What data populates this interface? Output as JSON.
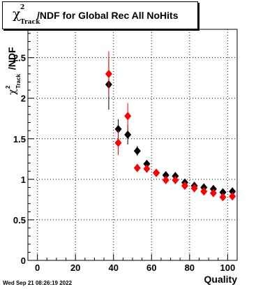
{
  "title": {
    "symbol": "χ",
    "superscript": "2",
    "subscript": "Track",
    "text": "/NDF for Global Rec All NoHits"
  },
  "timestamp": "Wed Sep 21 08:26:19 2022",
  "colors": {
    "series_black": "#000000",
    "series_red": "#ff0000",
    "grid": "#000000"
  },
  "chart_data": {
    "type": "scatter",
    "title": "χ²_Track /NDF for Global Rec All NoHits",
    "xlabel": "Quality",
    "ylabel": "χ²_Track /NDF",
    "xlim": [
      -5,
      105
    ],
    "ylim": [
      0,
      2.85
    ],
    "xticks": [
      0,
      20,
      40,
      60,
      80,
      100
    ],
    "yticks": [
      0,
      0.5,
      1,
      1.5,
      2,
      2.5
    ],
    "xtick_labels": [
      "0",
      "20",
      "40",
      "60",
      "80",
      "100"
    ],
    "ytick_labels": [
      "0",
      "0.5",
      "1",
      "1.5",
      "2",
      "2.5"
    ],
    "grid": true,
    "legend": "none",
    "series": [
      {
        "color": "#000000",
        "marker": "diamond",
        "points": [
          {
            "x": 37.5,
            "y": 2.17,
            "err": 0.31
          },
          {
            "x": 42.5,
            "y": 1.62,
            "err": 0.12
          },
          {
            "x": 47.5,
            "y": 1.55,
            "err": 0.12
          },
          {
            "x": 52.5,
            "y": 1.35,
            "err": 0.06
          },
          {
            "x": 57.5,
            "y": 1.19,
            "err": 0.03
          },
          {
            "x": 62.5,
            "y": 1.08,
            "err": 0.02
          },
          {
            "x": 67.5,
            "y": 1.05,
            "err": 0.02
          },
          {
            "x": 72.5,
            "y": 1.04,
            "err": 0.02
          },
          {
            "x": 77.5,
            "y": 0.96,
            "err": 0.015
          },
          {
            "x": 82.5,
            "y": 0.92,
            "err": 0.015
          },
          {
            "x": 87.5,
            "y": 0.9,
            "err": 0.015
          },
          {
            "x": 92.5,
            "y": 0.88,
            "err": 0.015
          },
          {
            "x": 97.5,
            "y": 0.84,
            "err": 0.015
          },
          {
            "x": 102.5,
            "y": 0.85,
            "err": 0.015
          }
        ]
      },
      {
        "color": "#ff0000",
        "marker": "diamond",
        "points": [
          {
            "x": 37.5,
            "y": 2.3,
            "err": 0.28
          },
          {
            "x": 42.5,
            "y": 1.45,
            "err": 0.15
          },
          {
            "x": 47.5,
            "y": 1.78,
            "err": 0.16
          },
          {
            "x": 52.5,
            "y": 1.14,
            "err": 0.05
          },
          {
            "x": 57.5,
            "y": 1.13,
            "err": 0.03
          },
          {
            "x": 62.5,
            "y": 1.08,
            "err": 0.02
          },
          {
            "x": 67.5,
            "y": 0.99,
            "err": 0.02
          },
          {
            "x": 72.5,
            "y": 0.99,
            "err": 0.02
          },
          {
            "x": 77.5,
            "y": 0.92,
            "err": 0.015
          },
          {
            "x": 82.5,
            "y": 0.89,
            "err": 0.015
          },
          {
            "x": 87.5,
            "y": 0.85,
            "err": 0.015
          },
          {
            "x": 92.5,
            "y": 0.83,
            "err": 0.015
          },
          {
            "x": 97.5,
            "y": 0.78,
            "err": 0.015
          },
          {
            "x": 102.5,
            "y": 0.79,
            "err": 0.015
          }
        ]
      }
    ]
  }
}
